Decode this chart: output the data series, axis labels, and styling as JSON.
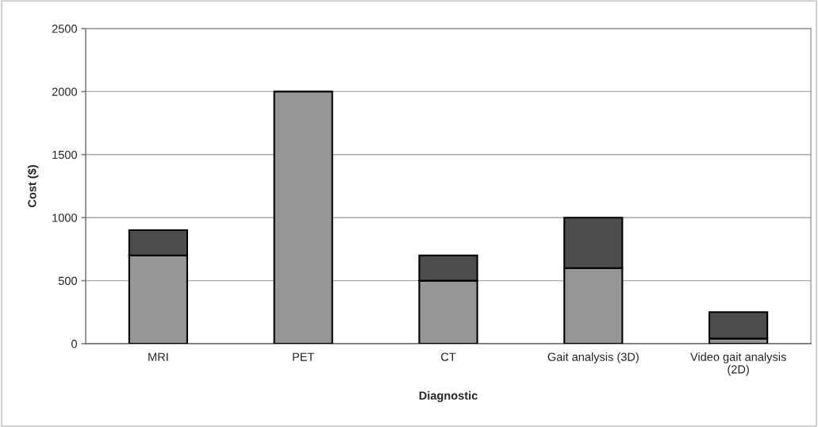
{
  "chart_data": {
    "type": "bar",
    "stacked": true,
    "xlabel": "Diagnostic",
    "ylabel": "Cost ($)",
    "categories": [
      "MRI",
      "PET",
      "CT",
      "Gait analysis (3D)",
      "Video gait analysis\n(2D)"
    ],
    "series": [
      {
        "color": "#969696",
        "values": [
          700,
          2000,
          500,
          600,
          40
        ]
      },
      {
        "color": "#4d4d4d",
        "values": [
          200,
          null,
          200,
          400,
          210
        ]
      }
    ],
    "ylim": [
      0,
      2500
    ],
    "yticks": [
      0,
      500,
      1000,
      1500,
      2000,
      2500
    ],
    "grid": "y",
    "legend": false
  }
}
